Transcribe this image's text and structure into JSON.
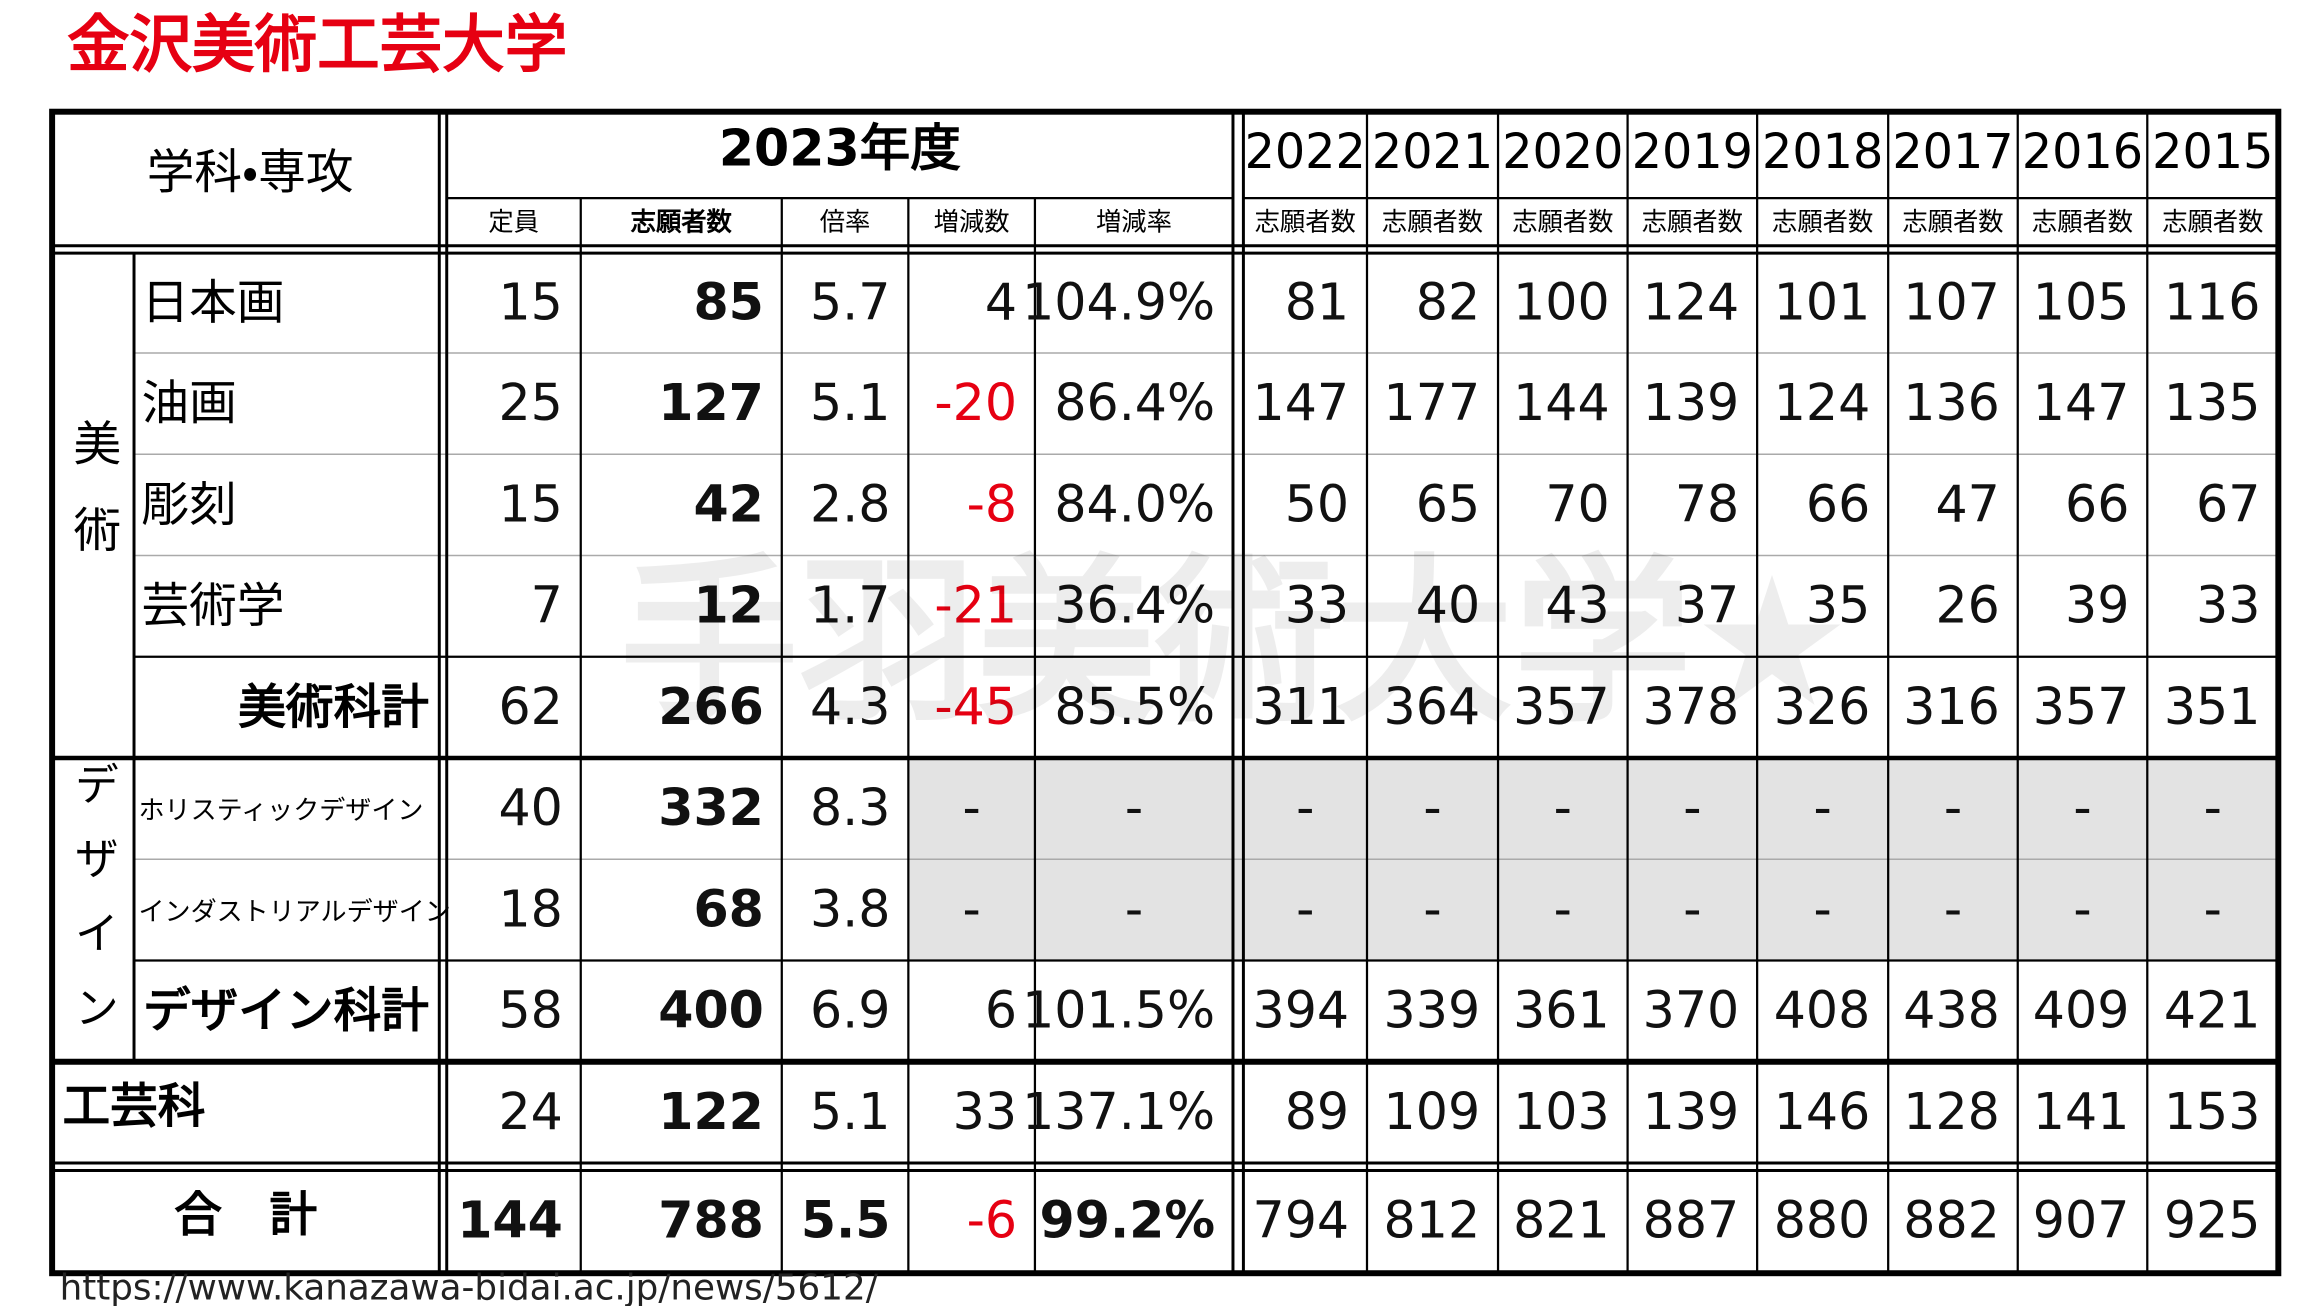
{
  "title": "金沢美術工芸大学",
  "header": {
    "dept": "学科・専攻",
    "year": "2023年度",
    "sub": [
      "定員",
      "志願者数",
      "倍率",
      "増減数",
      "増減率"
    ],
    "years": [
      "2022",
      "2021",
      "2020",
      "2019",
      "2018",
      "2017",
      "2016",
      "2015"
    ],
    "years_sub": [
      "志願者数",
      "志願者数",
      "志願者数",
      "志願者数",
      "志願者数",
      "志願者数",
      "志願者数",
      "志願者数"
    ]
  },
  "groups": [
    "美術",
    "デザイン"
  ],
  "rows": [
    {
      "name": "日本画",
      "cells": [
        15,
        85,
        5.7,
        4,
        "104.9%",
        81,
        82,
        100,
        124,
        101,
        107,
        105,
        116
      ]
    },
    {
      "name": "油画",
      "cells": [
        25,
        127,
        5.1,
        -20,
        "86.4%",
        147,
        177,
        144,
        139,
        124,
        136,
        147,
        135
      ]
    },
    {
      "name": "彫刻",
      "cells": [
        15,
        42,
        2.8,
        -8,
        "84.0%",
        50,
        65,
        70,
        78,
        66,
        47,
        66,
        67
      ]
    },
    {
      "name": "芸術学",
      "cells": [
        7,
        12,
        1.7,
        -21,
        "36.4%",
        33,
        40,
        43,
        37,
        35,
        26,
        39,
        33
      ]
    },
    {
      "name": "美術科計",
      "cells": [
        62,
        266,
        4.3,
        -45,
        "85.5%",
        311,
        364,
        357,
        378,
        326,
        316,
        357,
        351
      ]
    },
    {
      "name": "ホリスティックデザイン",
      "cells": [
        40,
        332,
        8.3,
        "-",
        "-",
        "-",
        "-",
        "-",
        "-",
        "-",
        "-",
        "-",
        "-"
      ]
    },
    {
      "name": "インダストリアルデザイン",
      "cells": [
        18,
        68,
        3.8,
        "-",
        "-",
        "-",
        "-",
        "-",
        "-",
        "-",
        "-",
        "-",
        "-"
      ]
    },
    {
      "name": "デザイン科計",
      "cells": [
        58,
        400,
        6.9,
        6,
        "101.5%",
        394,
        339,
        361,
        370,
        408,
        438,
        409,
        421
      ]
    },
    {
      "name": "工芸科",
      "cells": [
        24,
        122,
        5.1,
        33,
        "137.1%",
        89,
        109,
        103,
        139,
        146,
        128,
        141,
        153
      ]
    },
    {
      "name": "合　計",
      "cells": [
        144,
        788,
        5.5,
        -6,
        "99.2%",
        794,
        812,
        821,
        887,
        880,
        882,
        907,
        925
      ]
    }
  ],
  "watermark": "手羽美術大学★",
  "source": "https://www.kanazawa-bidai.ac.jp/news/5612/"
}
